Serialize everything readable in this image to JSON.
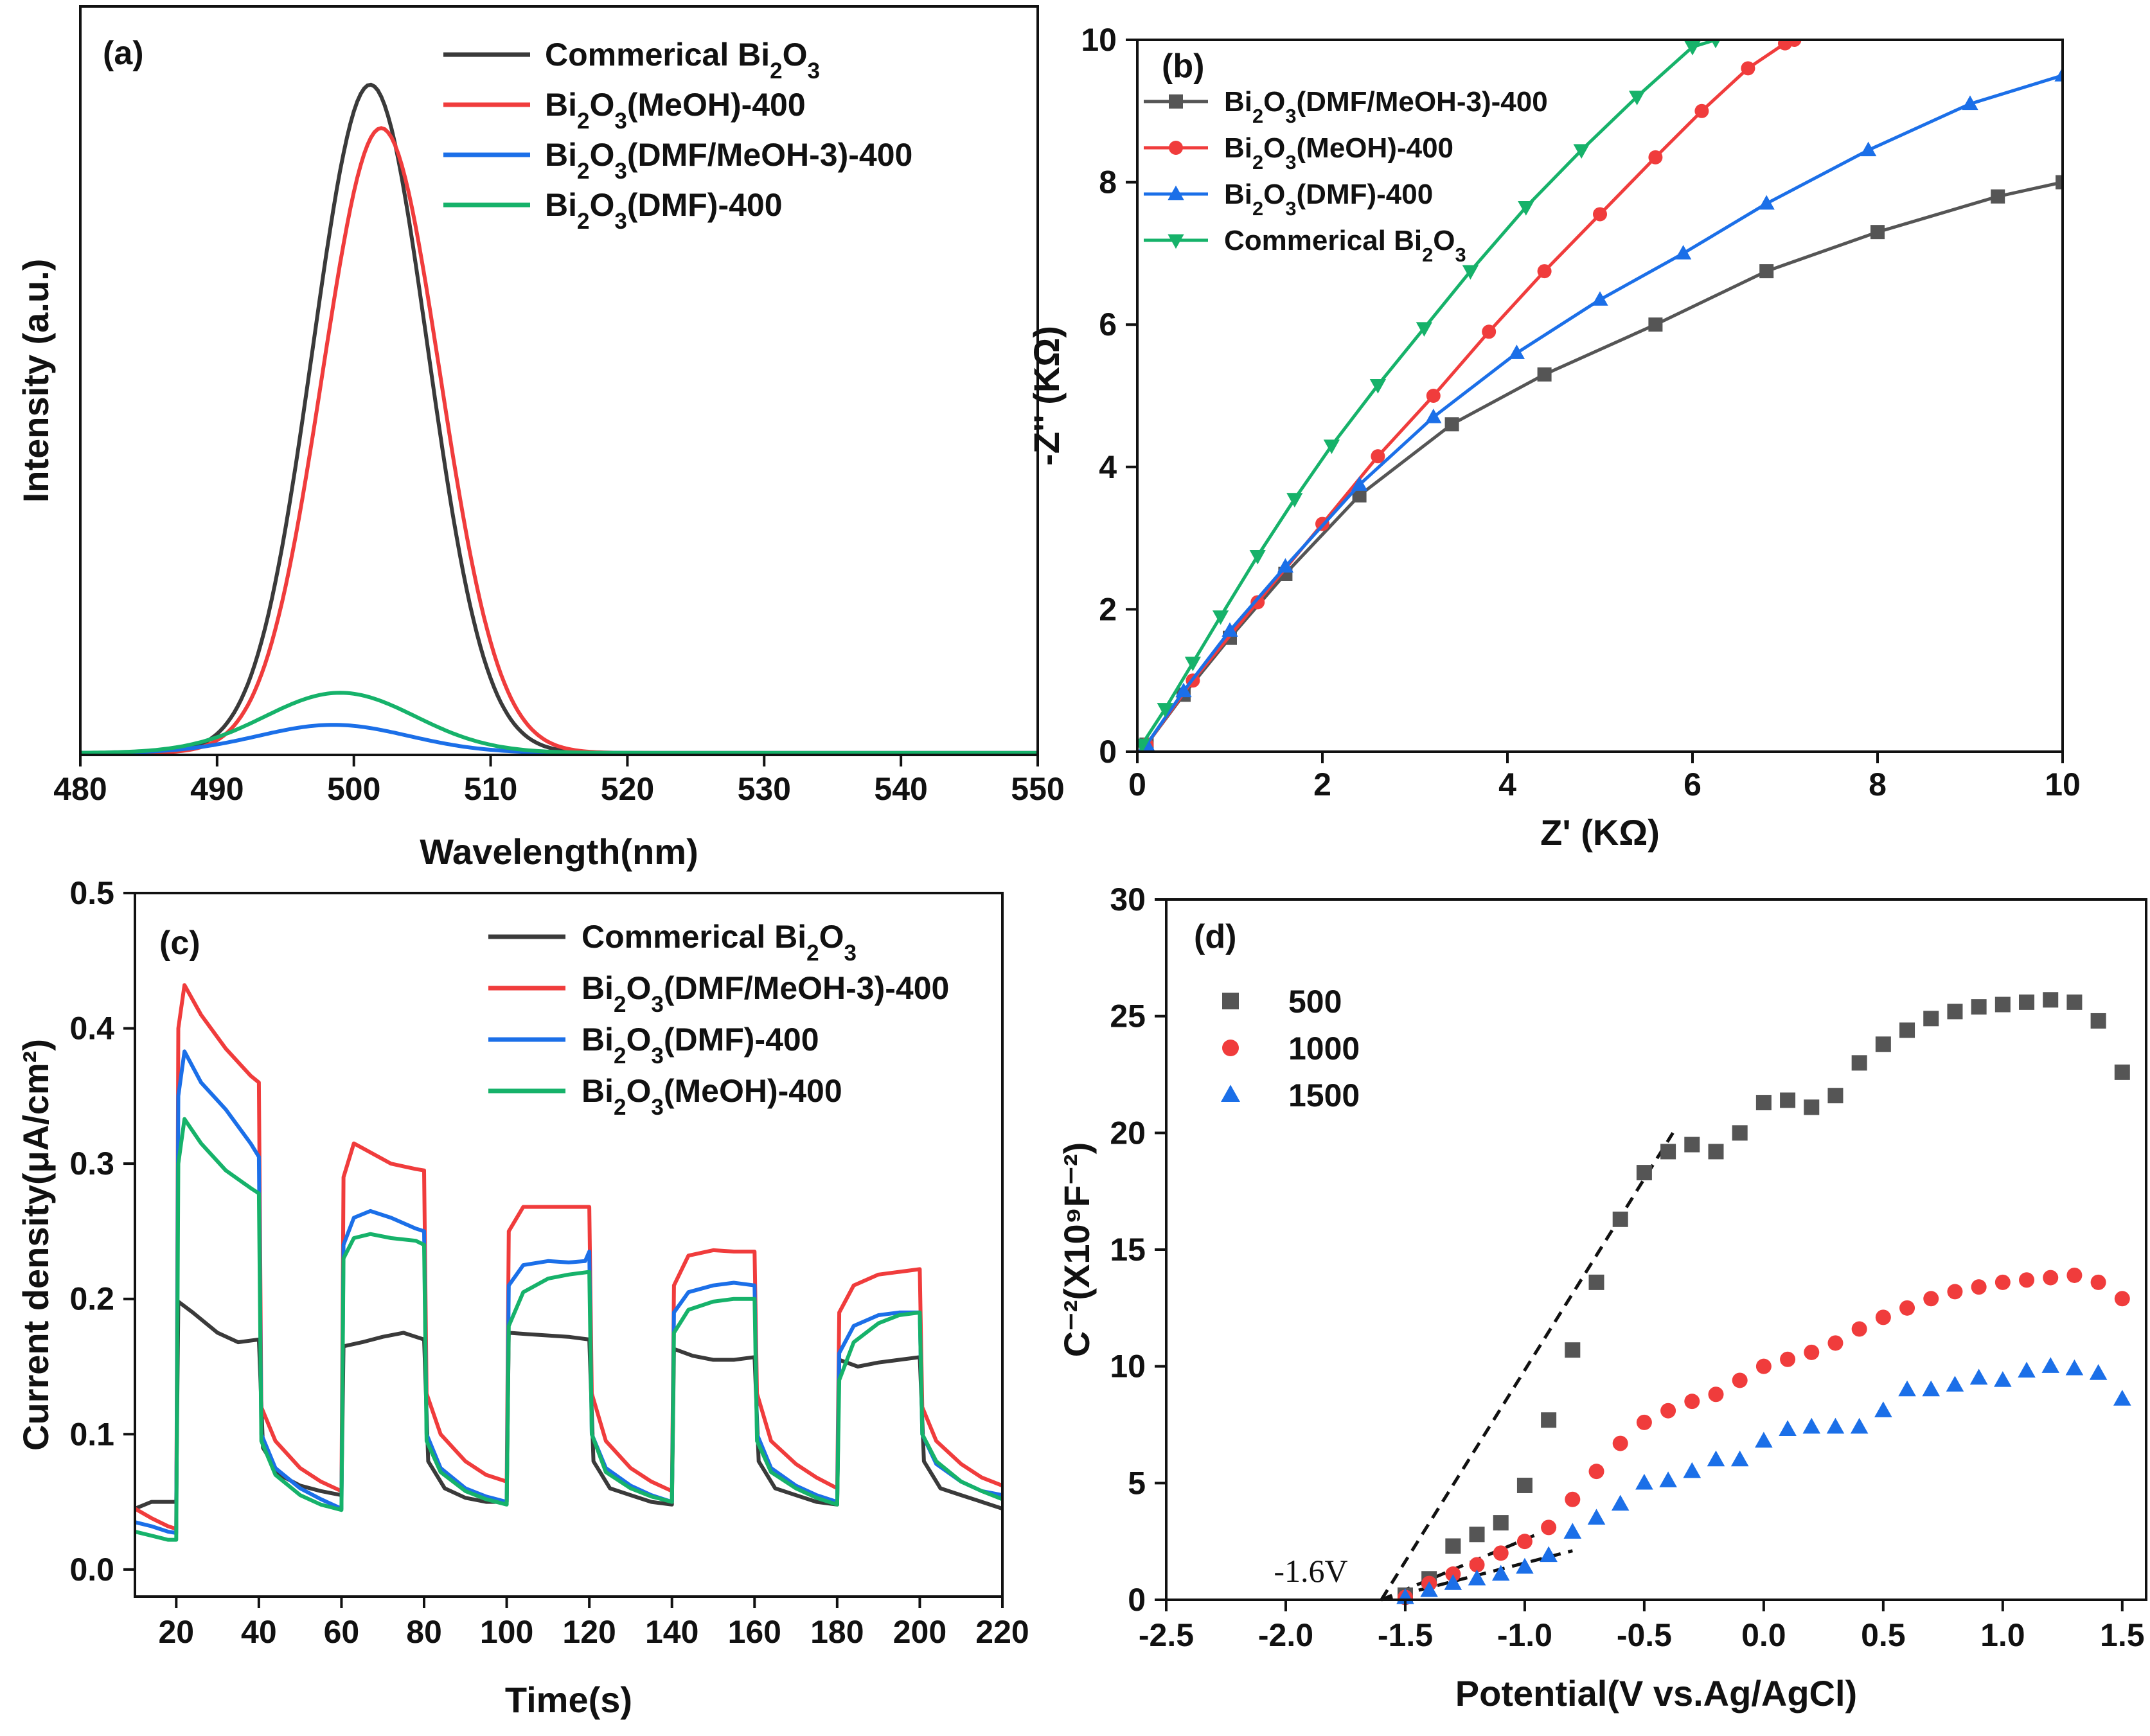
{
  "colors": {
    "black": "#3a3a3a",
    "red": "#f03c3c",
    "blue": "#1b6fe8",
    "green": "#16b26a",
    "gray": "#555555"
  },
  "chart_data": [
    {
      "id": "a",
      "panel_label": "(a)",
      "type": "line",
      "xlabel": "Wavelength(nm)",
      "ylabel": "Intensity (a.u.)",
      "xlim": [
        480,
        550
      ],
      "ylim": [
        0,
        1.12
      ],
      "xticks": [
        480,
        490,
        500,
        510,
        520,
        530,
        540,
        550
      ],
      "legend_position": "top-right",
      "series": [
        {
          "name": "Commerical Bi2O3",
          "label": [
            "Commerical Bi",
            "2",
            "O",
            "3",
            ""
          ],
          "color": "#3a3a3a",
          "peak": 501.2,
          "amp": 1.0,
          "sigma": 4.2,
          "base": 0.003
        },
        {
          "name": "Bi2O3(MeOH)-400",
          "label": [
            "Bi",
            "2",
            "O",
            "3",
            "(MeOH)-400"
          ],
          "color": "#f03c3c",
          "peak": 502.0,
          "amp": 0.935,
          "sigma": 4.3,
          "base": 0.003
        },
        {
          "name": "Bi2O3(DMF/MeOH-3)-400",
          "label": [
            "Bi",
            "2",
            "O",
            "3",
            "(DMF/MeOH-3)-400"
          ],
          "color": "#1b6fe8",
          "peak": 498.5,
          "amp": 0.042,
          "sigma": 5.5,
          "base": 0.003
        },
        {
          "name": "Bi2O3(DMF)-400",
          "label": [
            "Bi",
            "2",
            "O",
            "3",
            "(DMF)-400"
          ],
          "color": "#16b26a",
          "peak": 499.0,
          "amp": 0.09,
          "sigma": 5.5,
          "base": 0.003
        }
      ]
    },
    {
      "id": "b",
      "panel_label": "(b)",
      "type": "line",
      "xlabel": "Z' (KΩ)",
      "ylabel": "-Z'' (KΩ)",
      "xlim": [
        0,
        10
      ],
      "ylim": [
        0,
        10
      ],
      "xticks": [
        0,
        2,
        4,
        6,
        8,
        10
      ],
      "yticks": [
        0,
        2,
        4,
        6,
        8,
        10
      ],
      "legend_position": "top-left",
      "series": [
        {
          "name": "Bi2O3(DMF/MeOH-3)-400",
          "label": [
            "Bi",
            "2",
            "O",
            "3",
            "(DMF/MeOH-3)-400"
          ],
          "color": "#555555",
          "marker": "square",
          "x": [
            0.1,
            0.5,
            1.0,
            1.6,
            2.4,
            3.4,
            4.4,
            5.6,
            6.8,
            8.0,
            9.3,
            10.0
          ],
          "y": [
            0.1,
            0.8,
            1.6,
            2.5,
            3.6,
            4.6,
            5.3,
            6.0,
            6.75,
            7.3,
            7.8,
            8.0
          ]
        },
        {
          "name": "Bi2O3(MeOH)-400",
          "label": [
            "Bi",
            "2",
            "O",
            "3",
            "(MeOH)-400"
          ],
          "color": "#f03c3c",
          "marker": "circle",
          "x": [
            0.1,
            0.6,
            1.3,
            2.0,
            2.6,
            3.2,
            3.8,
            4.4,
            5.0,
            5.6,
            6.1,
            6.6,
            7.0,
            7.1
          ],
          "y": [
            0.1,
            1.0,
            2.1,
            3.2,
            4.15,
            5.0,
            5.9,
            6.75,
            7.55,
            8.35,
            9.0,
            9.6,
            9.95,
            10.0
          ]
        },
        {
          "name": "Bi2O3(DMF)-400",
          "label": [
            "Bi",
            "2",
            "O",
            "3",
            "(DMF)-400"
          ],
          "color": "#1b6fe8",
          "marker": "triangle-up",
          "x": [
            0.1,
            0.5,
            1.0,
            1.6,
            2.4,
            3.2,
            4.1,
            5.0,
            5.9,
            6.8,
            7.9,
            9.0,
            10.0
          ],
          "y": [
            0.1,
            0.85,
            1.7,
            2.6,
            3.75,
            4.7,
            5.6,
            6.35,
            7.0,
            7.7,
            8.45,
            9.1,
            9.5
          ]
        },
        {
          "name": "Commerical Bi2O3",
          "label": [
            "Commerical Bi",
            "2",
            "O",
            "3",
            ""
          ],
          "color": "#16b26a",
          "marker": "triangle-down",
          "x": [
            0.05,
            0.3,
            0.6,
            0.9,
            1.3,
            1.7,
            2.1,
            2.6,
            3.1,
            3.6,
            4.2,
            4.8,
            5.4,
            6.0,
            6.25
          ],
          "y": [
            0.1,
            0.6,
            1.25,
            1.9,
            2.75,
            3.55,
            4.3,
            5.15,
            5.95,
            6.75,
            7.65,
            8.45,
            9.2,
            9.9,
            10.0
          ]
        }
      ]
    },
    {
      "id": "c",
      "panel_label": "(c)",
      "type": "line",
      "xlabel": "Time(s)",
      "ylabel": "Current density(μA/cm²)",
      "xlim": [
        10,
        220
      ],
      "ylim": [
        -0.02,
        0.5
      ],
      "xticks": [
        20,
        40,
        60,
        80,
        100,
        120,
        140,
        160,
        180,
        200,
        220
      ],
      "yticks": [
        0.0,
        0.1,
        0.2,
        0.3,
        0.4,
        0.5
      ],
      "legend_position": "top-right",
      "series": [
        {
          "name": "Commerical Bi2O3",
          "label": [
            "Commerical Bi",
            "2",
            "O",
            "3",
            ""
          ],
          "color": "#3a3a3a",
          "x": [
            10,
            14,
            18,
            20,
            20.5,
            24,
            30,
            35,
            40,
            41,
            45,
            50,
            55,
            60,
            60.5,
            65,
            70,
            75,
            80,
            81,
            85,
            90,
            95,
            100,
            100.5,
            105,
            110,
            115,
            120,
            121,
            125,
            130,
            135,
            140,
            140.5,
            145,
            150,
            155,
            160,
            161,
            165,
            170,
            175,
            180,
            180.5,
            185,
            190,
            195,
            200,
            201,
            205,
            210,
            215,
            220
          ],
          "y": [
            0.045,
            0.05,
            0.05,
            0.05,
            0.198,
            0.19,
            0.175,
            0.168,
            0.17,
            0.09,
            0.07,
            0.062,
            0.058,
            0.055,
            0.165,
            0.168,
            0.172,
            0.175,
            0.17,
            0.08,
            0.06,
            0.053,
            0.05,
            0.05,
            0.175,
            0.174,
            0.173,
            0.172,
            0.17,
            0.08,
            0.06,
            0.055,
            0.05,
            0.048,
            0.163,
            0.158,
            0.155,
            0.155,
            0.157,
            0.08,
            0.06,
            0.055,
            0.05,
            0.048,
            0.155,
            0.15,
            0.153,
            0.155,
            0.157,
            0.08,
            0.06,
            0.055,
            0.05,
            0.045
          ]
        },
        {
          "name": "Bi2O3(DMF/MeOH-3)-400",
          "label": [
            "Bi",
            "2",
            "O",
            "3",
            "(DMF/MeOH-3)-400"
          ],
          "color": "#f03c3c",
          "x": [
            10,
            14,
            18,
            20,
            20.5,
            22,
            26,
            32,
            38,
            40,
            40.6,
            44,
            50,
            55,
            60,
            60.5,
            63,
            66,
            72,
            78,
            80,
            80.6,
            84,
            90,
            95,
            100,
            100.5,
            104,
            110,
            115,
            120,
            120.6,
            124,
            130,
            135,
            140,
            140.5,
            144,
            150,
            155,
            160,
            160.6,
            164,
            170,
            175,
            180,
            180.5,
            184,
            190,
            195,
            200,
            200.6,
            204,
            210,
            215,
            220
          ],
          "y": [
            0.045,
            0.038,
            0.032,
            0.03,
            0.4,
            0.432,
            0.41,
            0.385,
            0.365,
            0.36,
            0.12,
            0.095,
            0.075,
            0.065,
            0.058,
            0.29,
            0.315,
            0.31,
            0.3,
            0.296,
            0.295,
            0.13,
            0.1,
            0.08,
            0.07,
            0.065,
            0.25,
            0.268,
            0.268,
            0.268,
            0.268,
            0.13,
            0.095,
            0.075,
            0.065,
            0.058,
            0.21,
            0.232,
            0.236,
            0.235,
            0.235,
            0.13,
            0.095,
            0.078,
            0.068,
            0.06,
            0.19,
            0.21,
            0.218,
            0.22,
            0.222,
            0.12,
            0.095,
            0.078,
            0.068,
            0.062
          ]
        },
        {
          "name": "Bi2O3(DMF)-400",
          "label": [
            "Bi",
            "2",
            "O",
            "3",
            "(DMF)-400"
          ],
          "color": "#1b6fe8",
          "x": [
            10,
            14,
            18,
            20,
            20.5,
            22,
            26,
            32,
            38,
            40,
            40.6,
            44,
            50,
            55,
            60,
            60.5,
            63,
            67,
            72,
            78,
            80,
            80.6,
            84,
            90,
            95,
            100,
            100.5,
            104,
            110,
            115,
            119,
            120,
            120.6,
            124,
            130,
            135,
            140,
            140.5,
            144,
            150,
            155,
            160,
            160.6,
            164,
            170,
            175,
            180,
            180.5,
            184,
            190,
            195,
            200,
            200.6,
            204,
            210,
            215,
            220
          ],
          "y": [
            0.035,
            0.032,
            0.028,
            0.027,
            0.35,
            0.383,
            0.36,
            0.34,
            0.315,
            0.305,
            0.1,
            0.075,
            0.06,
            0.052,
            0.045,
            0.24,
            0.26,
            0.265,
            0.26,
            0.252,
            0.25,
            0.1,
            0.075,
            0.06,
            0.054,
            0.05,
            0.21,
            0.225,
            0.228,
            0.227,
            0.228,
            0.235,
            0.1,
            0.075,
            0.062,
            0.055,
            0.05,
            0.19,
            0.205,
            0.21,
            0.212,
            0.21,
            0.1,
            0.075,
            0.062,
            0.055,
            0.05,
            0.16,
            0.18,
            0.188,
            0.19,
            0.19,
            0.1,
            0.078,
            0.065,
            0.058,
            0.055
          ]
        },
        {
          "name": "Bi2O3(MeOH)-400",
          "label": [
            "Bi",
            "2",
            "O",
            "3",
            "(MeOH)-400"
          ],
          "color": "#16b26a",
          "x": [
            10,
            14,
            18,
            20,
            20.5,
            22,
            26,
            32,
            38,
            40,
            40.6,
            44,
            50,
            55,
            60,
            60.5,
            63,
            67,
            72,
            78,
            80,
            80.6,
            84,
            90,
            95,
            100,
            100.5,
            104,
            110,
            115,
            120,
            120.6,
            124,
            130,
            135,
            140,
            140.5,
            144,
            150,
            155,
            160,
            160.6,
            164,
            170,
            175,
            180,
            180.5,
            184,
            190,
            195,
            200,
            200.6,
            204,
            210,
            215,
            220
          ],
          "y": [
            0.028,
            0.025,
            0.022,
            0.022,
            0.3,
            0.333,
            0.315,
            0.295,
            0.282,
            0.278,
            0.095,
            0.07,
            0.055,
            0.048,
            0.044,
            0.23,
            0.245,
            0.248,
            0.245,
            0.243,
            0.24,
            0.095,
            0.072,
            0.058,
            0.052,
            0.048,
            0.18,
            0.205,
            0.215,
            0.218,
            0.22,
            0.1,
            0.072,
            0.06,
            0.054,
            0.05,
            0.175,
            0.192,
            0.198,
            0.2,
            0.2,
            0.095,
            0.072,
            0.06,
            0.053,
            0.048,
            0.14,
            0.168,
            0.182,
            0.188,
            0.19,
            0.1,
            0.08,
            0.065,
            0.058,
            0.052
          ]
        }
      ]
    },
    {
      "id": "d",
      "panel_label": "(d)",
      "type": "scatter",
      "xlabel": "Potential(V vs.Ag/AgCl)",
      "ylabel": "C⁻²(X10⁹F⁻²)",
      "xlim": [
        -2.5,
        1.6
      ],
      "ylim": [
        0,
        30
      ],
      "xticks": [
        -2.5,
        -2.0,
        -1.5,
        -1.0,
        -0.5,
        0.0,
        0.5,
        1.0,
        1.5
      ],
      "yticks": [
        0,
        5,
        10,
        15,
        20,
        25,
        30
      ],
      "legend_position": "top-left",
      "annotation": "-1.6V",
      "series": [
        {
          "name": "500",
          "color": "#555555",
          "marker": "square",
          "x": [
            -1.5,
            -1.4,
            -1.3,
            -1.2,
            -1.1,
            -1.0,
            -0.9,
            -0.8,
            -0.7,
            -0.6,
            -0.5,
            -0.4,
            -0.3,
            -0.2,
            -0.1,
            0.0,
            0.1,
            0.2,
            0.3,
            0.4,
            0.5,
            0.6,
            0.7,
            0.8,
            0.9,
            1.0,
            1.1,
            1.2,
            1.3,
            1.4,
            1.5
          ],
          "y": [
            0.2,
            0.9,
            2.3,
            2.8,
            3.3,
            4.9,
            7.7,
            10.7,
            13.6,
            16.3,
            18.3,
            19.2,
            19.5,
            19.2,
            20.0,
            21.3,
            21.4,
            21.1,
            21.6,
            23.0,
            23.8,
            24.4,
            24.9,
            25.2,
            25.4,
            25.5,
            25.6,
            25.7,
            25.6,
            24.8,
            22.6
          ]
        },
        {
          "name": "1000",
          "color": "#f03c3c",
          "marker": "circle",
          "x": [
            -1.5,
            -1.4,
            -1.3,
            -1.2,
            -1.1,
            -1.0,
            -0.9,
            -0.8,
            -0.7,
            -0.6,
            -0.5,
            -0.4,
            -0.3,
            -0.2,
            -0.1,
            0.0,
            0.1,
            0.2,
            0.3,
            0.4,
            0.5,
            0.6,
            0.7,
            0.8,
            0.9,
            1.0,
            1.1,
            1.2,
            1.3,
            1.4,
            1.5
          ],
          "y": [
            0.1,
            0.7,
            1.1,
            1.5,
            2.0,
            2.5,
            3.1,
            4.3,
            5.5,
            6.7,
            7.6,
            8.1,
            8.5,
            8.8,
            9.4,
            10.0,
            10.3,
            10.6,
            11.0,
            11.6,
            12.1,
            12.5,
            12.9,
            13.2,
            13.4,
            13.6,
            13.7,
            13.8,
            13.9,
            13.6,
            12.9
          ]
        },
        {
          "name": "1500",
          "color": "#1b6fe8",
          "marker": "triangle-up",
          "x": [
            -1.5,
            -1.4,
            -1.3,
            -1.2,
            -1.1,
            -1.0,
            -0.9,
            -0.8,
            -0.7,
            -0.6,
            -0.5,
            -0.4,
            -0.3,
            -0.2,
            -0.1,
            0.0,
            0.1,
            0.2,
            0.3,
            0.4,
            0.5,
            0.6,
            0.7,
            0.8,
            0.9,
            1.0,
            1.1,
            1.2,
            1.3,
            1.4,
            1.5
          ],
          "y": [
            0.1,
            0.4,
            0.7,
            0.9,
            1.1,
            1.4,
            1.9,
            2.9,
            3.5,
            4.1,
            5.0,
            5.1,
            5.5,
            6.0,
            6.0,
            6.8,
            7.3,
            7.4,
            7.4,
            7.4,
            8.1,
            9.0,
            9.0,
            9.2,
            9.5,
            9.4,
            9.8,
            10.0,
            9.9,
            9.7,
            8.6
          ]
        }
      ],
      "fit_lines": [
        {
          "name": "fit-500",
          "x": [
            -1.6,
            -0.38
          ],
          "y": [
            0,
            20
          ]
        },
        {
          "name": "fit-1000",
          "x": [
            -1.6,
            -0.95
          ],
          "y": [
            0,
            2.8
          ]
        },
        {
          "name": "fit-1500",
          "x": [
            -1.6,
            -0.8
          ],
          "y": [
            0,
            2.1
          ]
        }
      ]
    }
  ]
}
